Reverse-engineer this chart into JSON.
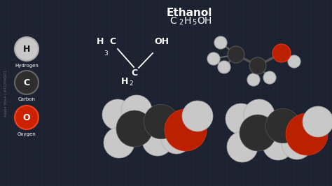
{
  "title": "Ethanol",
  "bg_color": "#1c2230",
  "grid_color": "#2a3248",
  "text_color": "#ffffff",
  "legend": [
    {
      "symbol": "H",
      "label": "Hydrogen",
      "fill": "#c8c8c8",
      "edge": "#aaaaaa",
      "text_color": "#111111"
    },
    {
      "symbol": "C",
      "label": "Carbon",
      "fill": "#2e2e2e",
      "edge": "#666666",
      "text_color": "#ffffff"
    },
    {
      "symbol": "O",
      "label": "Oxygen",
      "fill": "#cc2200",
      "edge": "#ee4422",
      "text_color": "#ffffff"
    }
  ],
  "H_color": "#c8c8c8",
  "C_color": "#2e2e2e",
  "O_color": "#bb2000",
  "H_ec": "#aaaaaa",
  "C_ec": "#555555",
  "O_ec": "#ee3311",
  "watermark": "Adobe Stock | #410590971"
}
